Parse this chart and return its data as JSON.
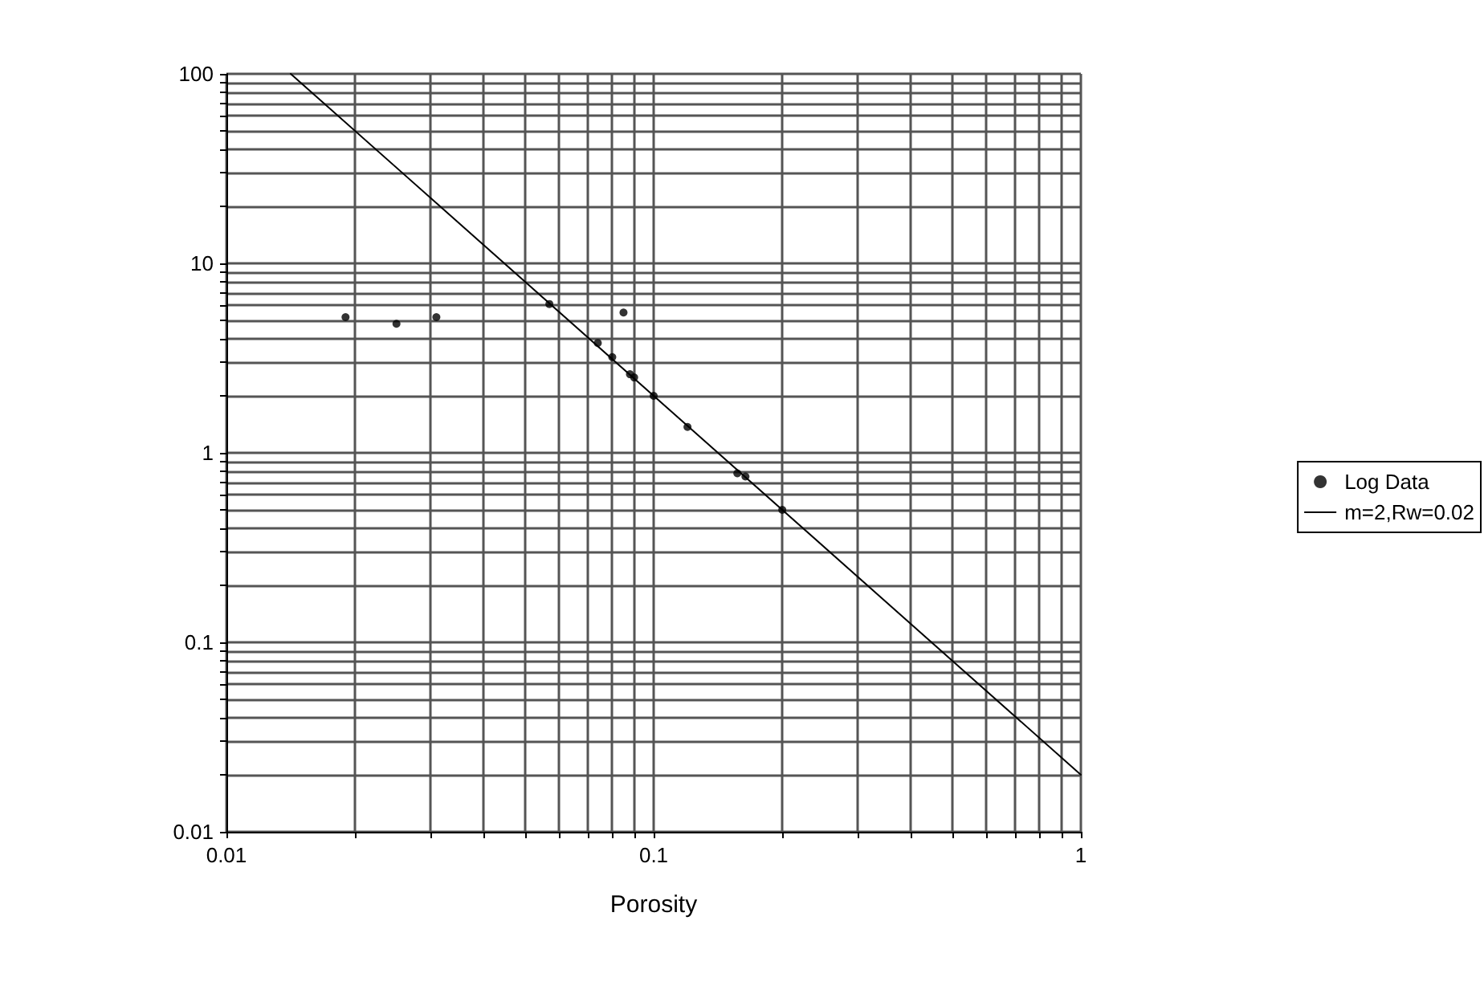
{
  "chart_data": {
    "type": "scatter",
    "xlabel": "Porosity",
    "log": "xy",
    "xlim": [
      0.01,
      1
    ],
    "ylim": [
      0.01,
      100
    ],
    "xticks": [
      0.01,
      0.1,
      1
    ],
    "yticks": [
      0.01,
      0.1,
      1,
      10,
      100
    ],
    "grid": true,
    "legend": "right",
    "marker": "circle",
    "series": [
      {
        "name": "Log Data",
        "color": "#000000",
        "x": [
          0.019,
          0.025,
          0.031,
          0.057,
          0.085,
          0.074,
          0.08,
          0.088,
          0.09,
          0.1,
          0.12,
          0.157,
          0.164,
          0.2
        ],
        "values": [
          5.2,
          4.8,
          5.2,
          6.1,
          5.5,
          3.8,
          3.2,
          2.6,
          2.5,
          2.0,
          1.37,
          0.78,
          0.75,
          0.5
        ]
      },
      {
        "name": "m=2,Rw=0.02",
        "type": "line",
        "color": "#000000",
        "line_style": "solid",
        "marker": "none",
        "x": [
          0.01414,
          1
        ],
        "values": [
          100,
          0.02
        ]
      }
    ]
  }
}
